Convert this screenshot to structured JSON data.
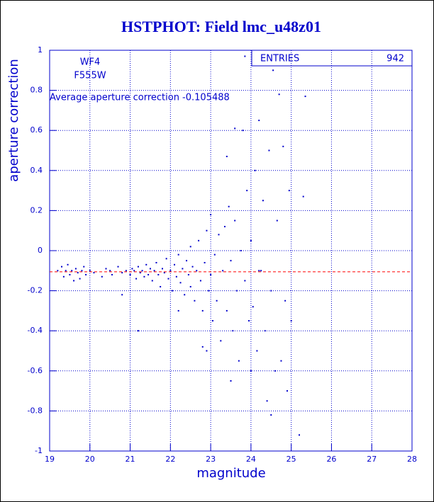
{
  "chart_data": {
    "type": "scatter",
    "title": "HSTPHOT: Field lmc_u48z01",
    "x_label": "magnitude",
    "y_label": "aperture correction",
    "annotations": [
      "WF4",
      "F555W",
      "Average aperture correction -0.105488"
    ],
    "stats": {
      "label": "ENTRIES",
      "value": 942
    },
    "average": -0.105488,
    "average_color": "#ff0000",
    "color": "#0000cc",
    "grid": true,
    "xlim": [
      19,
      28
    ],
    "xticks": [
      19,
      20,
      21,
      22,
      23,
      24,
      25,
      26,
      27,
      28
    ],
    "ylim": [
      -1,
      1
    ],
    "yticks": [
      -1,
      -0.8,
      -0.6,
      -0.4,
      -0.2,
      0,
      0.2,
      0.4,
      0.6,
      0.8,
      1
    ],
    "x": [
      19.2,
      19.3,
      19.35,
      19.4,
      19.45,
      19.5,
      19.55,
      19.6,
      19.65,
      19.7,
      19.75,
      19.8,
      19.85,
      19.9,
      20.0,
      20.1,
      20.3,
      20.4,
      20.5,
      20.55,
      20.7,
      20.8,
      20.9,
      21.0,
      21.05,
      21.1,
      21.15,
      21.2,
      21.25,
      21.3,
      21.35,
      21.4,
      21.45,
      21.5,
      21.55,
      21.6,
      21.65,
      21.7,
      21.75,
      21.8,
      21.85,
      21.9,
      21.95,
      22.0,
      22.05,
      22.1,
      22.15,
      22.2,
      22.25,
      22.3,
      22.35,
      22.4,
      22.45,
      22.5,
      22.5,
      22.55,
      22.6,
      22.65,
      22.7,
      22.75,
      22.8,
      22.85,
      22.9,
      22.95,
      23.0,
      23.0,
      23.05,
      23.1,
      23.15,
      23.2,
      23.25,
      23.3,
      23.35,
      23.4,
      23.45,
      23.5,
      23.55,
      23.6,
      23.65,
      23.7,
      23.75,
      23.8,
      23.85,
      23.9,
      23.95,
      24.0,
      24.05,
      24.1,
      24.15,
      24.2,
      24.25,
      24.3,
      24.35,
      24.4,
      24.45,
      24.5,
      24.55,
      24.6,
      24.65,
      24.7,
      24.75,
      24.8,
      24.85,
      24.9,
      24.95,
      25.0,
      25.2,
      25.3,
      25.35,
      23.85,
      22.8,
      21.2,
      20.8,
      23.4,
      24.5,
      23.6,
      24.2,
      22.2,
      22.9,
      23.5,
      24.0
    ],
    "y": [
      -0.1,
      -0.08,
      -0.13,
      -0.1,
      -0.07,
      -0.12,
      -0.1,
      -0.15,
      -0.09,
      -0.11,
      -0.14,
      -0.1,
      -0.08,
      -0.12,
      -0.1,
      -0.11,
      -0.13,
      -0.09,
      -0.1,
      -0.12,
      -0.08,
      -0.11,
      -0.1,
      -0.12,
      -0.09,
      -0.1,
      -0.14,
      -0.08,
      -0.11,
      -0.1,
      -0.13,
      -0.07,
      -0.12,
      -0.09,
      -0.15,
      -0.1,
      -0.06,
      -0.12,
      -0.18,
      -0.09,
      -0.11,
      -0.04,
      -0.14,
      -0.1,
      -0.2,
      -0.07,
      -0.13,
      -0.02,
      -0.16,
      -0.09,
      -0.22,
      -0.05,
      -0.12,
      -0.18,
      0.02,
      -0.08,
      -0.25,
      -0.1,
      0.05,
      -0.15,
      -0.3,
      -0.06,
      0.1,
      -0.2,
      -0.12,
      0.18,
      -0.35,
      -0.02,
      -0.25,
      0.08,
      -0.45,
      -0.1,
      0.12,
      -0.3,
      0.22,
      -0.05,
      -0.4,
      0.15,
      -0.2,
      -0.55,
      0.0,
      0.6,
      -0.15,
      0.3,
      -0.35,
      0.05,
      -0.28,
      0.4,
      -0.5,
      0.65,
      -0.1,
      0.25,
      -0.4,
      -0.75,
      0.5,
      -0.2,
      0.9,
      -0.6,
      0.15,
      0.78,
      -0.55,
      0.52,
      -0.25,
      -0.7,
      0.3,
      -0.35,
      -0.92,
      0.27,
      0.77,
      0.97,
      -0.48,
      -0.4,
      -0.22,
      0.47,
      -0.82,
      0.61,
      -0.1,
      -0.3,
      -0.5,
      -0.65,
      -0.6
    ]
  }
}
